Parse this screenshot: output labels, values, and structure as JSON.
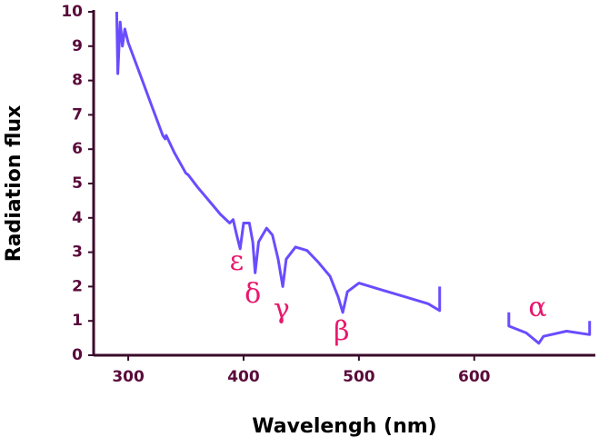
{
  "chart_data": {
    "type": "line",
    "xlabel": "Wavelengh (nm)",
    "ylabel": "Radiation flux",
    "x": [
      290,
      291,
      293,
      295,
      297,
      300,
      310,
      320,
      330,
      332,
      333,
      340,
      350,
      352,
      360,
      370,
      380,
      388,
      391,
      394,
      397,
      400,
      405,
      408,
      410,
      413,
      420,
      425,
      430,
      434,
      437,
      445,
      455,
      465,
      475,
      482,
      486,
      490,
      500,
      520,
      540,
      560,
      570,
      570,
      600,
      630,
      630,
      645,
      656,
      660,
      680,
      700,
      700
    ],
    "series": [
      {
        "color": "#6a4cff",
        "values": [
          10,
          8.2,
          9.7,
          9.0,
          9.5,
          9.1,
          8.2,
          7.3,
          6.4,
          6.3,
          6.4,
          5.9,
          5.3,
          5.25,
          4.9,
          4.5,
          4.1,
          3.85,
          3.95,
          3.5,
          3.1,
          3.85,
          3.85,
          3.3,
          2.4,
          3.3,
          3.7,
          3.5,
          2.8,
          2.0,
          2.8,
          3.15,
          3.05,
          2.7,
          2.3,
          1.7,
          1.25,
          1.85,
          2.1,
          1.9,
          1.7,
          1.5,
          1.3,
          2.0,
          null,
          1.25,
          0.85,
          0.65,
          0.35,
          0.55,
          0.7,
          0.6,
          1.0
        ]
      }
    ],
    "annotations": [
      {
        "text": "ε",
        "x": 394,
        "y": 2.7
      },
      {
        "text": "δ",
        "x": 408,
        "y": 1.75
      },
      {
        "text": "γ",
        "x": 433,
        "y": 1.3
      },
      {
        "text": "β",
        "x": 485,
        "y": 0.65
      },
      {
        "text": "α",
        "x": 655,
        "y": 1.35
      }
    ],
    "annotation_color": "#e8186c",
    "xlim": [
      270,
      705
    ],
    "xticks": [
      300,
      400,
      500,
      600
    ],
    "ylim": [
      0,
      10
    ],
    "yticks": [
      0,
      1,
      2,
      3,
      4,
      5,
      6,
      7,
      8,
      9,
      10
    ]
  }
}
